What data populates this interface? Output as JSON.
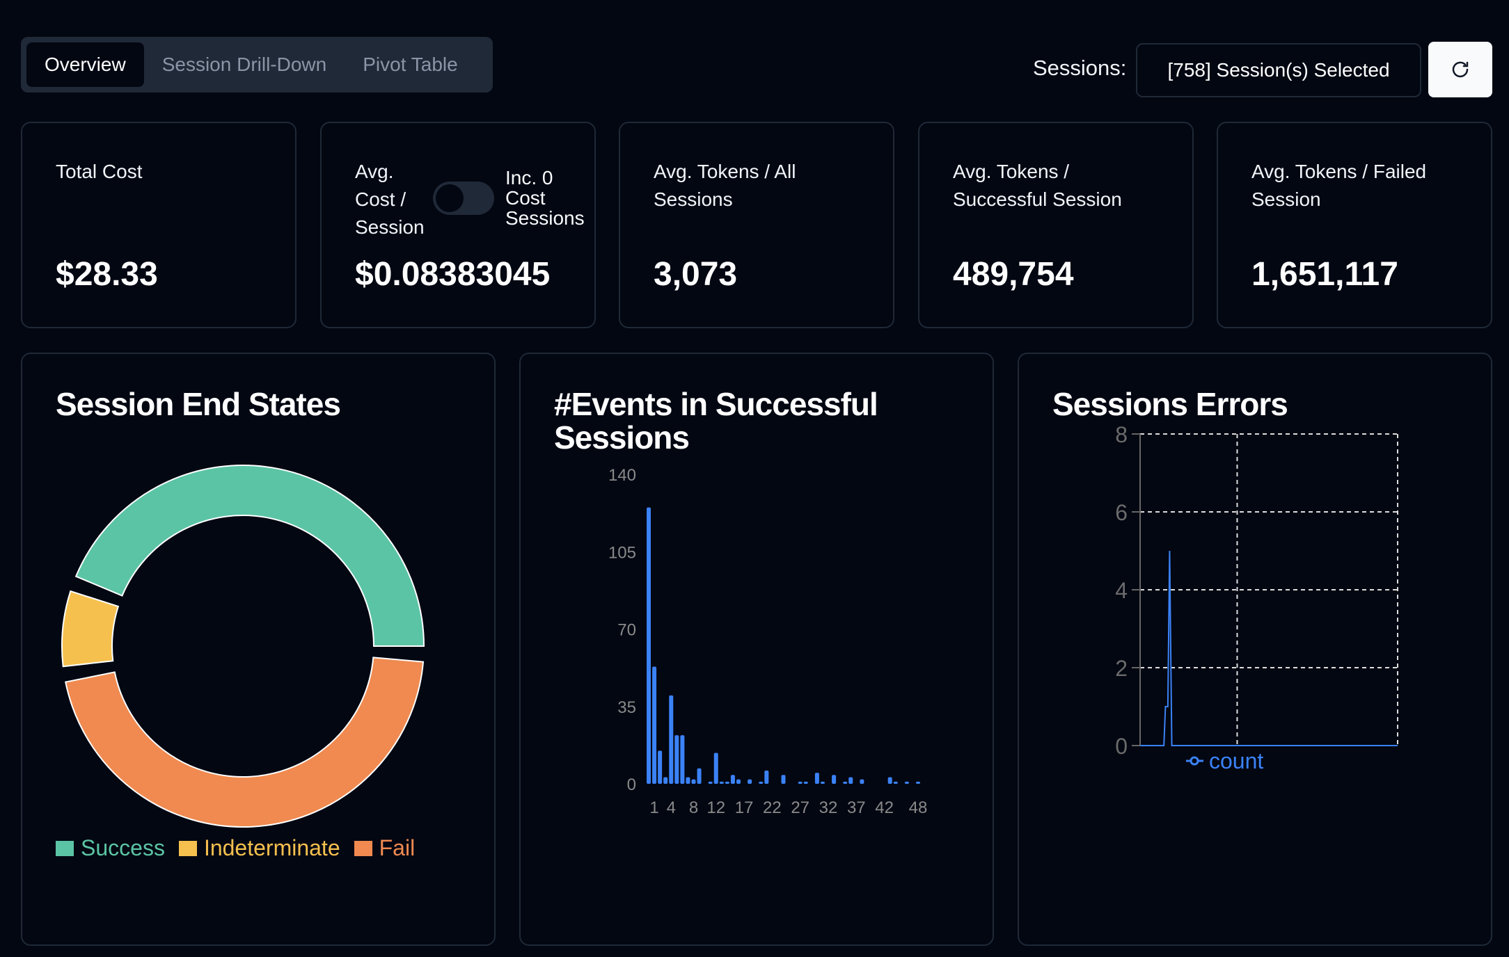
{
  "tabs": [
    {
      "label": "Overview",
      "active": true
    },
    {
      "label": "Session Drill-Down",
      "active": false
    },
    {
      "label": "Pivot Table",
      "active": false
    }
  ],
  "sessions": {
    "label": "Sessions:",
    "selected": "[758] Session(s) Selected",
    "refresh_icon": "refresh-icon"
  },
  "kpis": [
    {
      "label": "Total Cost",
      "value": "$28.33"
    },
    {
      "label": "Avg. Cost / Session",
      "value": "$0.08383045",
      "toggle_label": "Inc. 0 Cost Sessions",
      "toggle_on": false
    },
    {
      "label": "Avg. Tokens / All Sessions",
      "value": "3,073"
    },
    {
      "label": "Avg. Tokens / Successful Session",
      "value": "489,754"
    },
    {
      "label": "Avg. Tokens / Failed Session",
      "value": "1,651,117"
    }
  ],
  "colors": {
    "background": "#030712",
    "success": "#5bc4a4",
    "indeterminate": "#f5c04e",
    "fail": "#f08a50",
    "series": "#3b82f6"
  },
  "chart_data": [
    {
      "type": "pie",
      "title": "Session End States",
      "donut": true,
      "slices": [
        {
          "name": "Success",
          "value": 45.6,
          "color": "#5bc4a4"
        },
        {
          "name": "Indeterminate",
          "value": 7,
          "color": "#f5c04e"
        },
        {
          "name": "Fail",
          "value": 47.4,
          "color": "#f08a50"
        }
      ],
      "legend": "bottom"
    },
    {
      "type": "bar",
      "title": "#Events in Successful Sessions",
      "ylim": [
        0,
        140
      ],
      "yticks": [
        0,
        35,
        70,
        105,
        140
      ],
      "xtick_labels": [
        1,
        4,
        8,
        12,
        17,
        22,
        27,
        32,
        37,
        42,
        48
      ],
      "categories": [
        0,
        1,
        2,
        3,
        4,
        5,
        6,
        7,
        8,
        9,
        10,
        11,
        12,
        13,
        14,
        15,
        16,
        17,
        18,
        19,
        20,
        21,
        22,
        23,
        24,
        25,
        26,
        27,
        28,
        29,
        30,
        31,
        32,
        33,
        34,
        35,
        36,
        37,
        38,
        39,
        40,
        41,
        42,
        43,
        44,
        45,
        46,
        47,
        48
      ],
      "values": [
        125,
        53,
        15,
        3,
        40,
        22,
        22,
        3,
        2,
        7,
        0,
        1,
        14,
        1,
        1,
        4,
        2,
        0,
        2,
        0,
        1,
        6,
        0,
        0,
        4,
        0,
        0,
        1,
        1,
        0,
        5,
        1,
        0,
        4,
        0,
        1,
        3,
        0,
        2,
        0,
        0,
        0,
        0,
        3,
        1,
        0,
        1,
        0,
        1
      ],
      "grid": false
    },
    {
      "type": "line",
      "title": "Sessions Errors",
      "ylim": [
        0,
        8
      ],
      "yticks": [
        0,
        2,
        4,
        6,
        8
      ],
      "xlim": [
        0,
        130
      ],
      "grid": true,
      "series": [
        {
          "name": "count",
          "points": [
            [
              0,
              0
            ],
            [
              12,
              0
            ],
            [
              12.8,
              1
            ],
            [
              14,
              1
            ],
            [
              14.9,
              5
            ],
            [
              16,
              0
            ],
            [
              130,
              0
            ]
          ]
        }
      ],
      "legend": "bottom"
    }
  ]
}
